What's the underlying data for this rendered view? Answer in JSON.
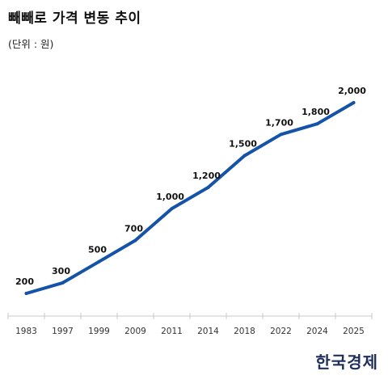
{
  "header": {
    "title": "빼빼로 가격 변동 추이",
    "unit": "(단위 : 원)"
  },
  "brand": "한국경제",
  "colors": {
    "line": "#1553a8",
    "axis": "#c8c8c8",
    "brand": "#1f2f5c"
  },
  "chart_data": {
    "type": "line",
    "title": "빼빼로 가격 변동 추이",
    "subtitle": "(단위 : 원)",
    "categories": [
      "1983",
      "1997",
      "1999",
      "2009",
      "2011",
      "2014",
      "2018",
      "2022",
      "2024",
      "2025"
    ],
    "series": [
      {
        "values": [
          200,
          300,
          500,
          700,
          1000,
          1200,
          1500,
          1700,
          1800,
          2000
        ]
      }
    ],
    "data_labels": [
      "200",
      "300",
      "500",
      "700",
      "1,000",
      "1,200",
      "1,500",
      "1,700",
      "1,800",
      "2,000"
    ],
    "ylim": [
      0,
      2000
    ],
    "grid": false,
    "legend": "none"
  }
}
